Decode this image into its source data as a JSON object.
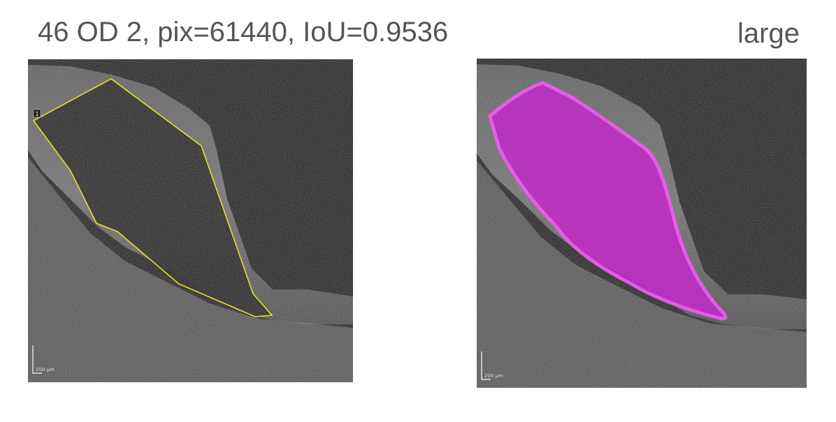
{
  "header": {
    "caption": "46 OD 2, pix=61440, IoU=0.9536",
    "size_label": "large"
  },
  "left_image": {
    "roi_number": "1",
    "scale_bar_label": "200 µm",
    "outline_color": "#e6e022"
  },
  "right_image": {
    "scale_bar_label": "200 µm",
    "mask_color": "#c000c8"
  }
}
